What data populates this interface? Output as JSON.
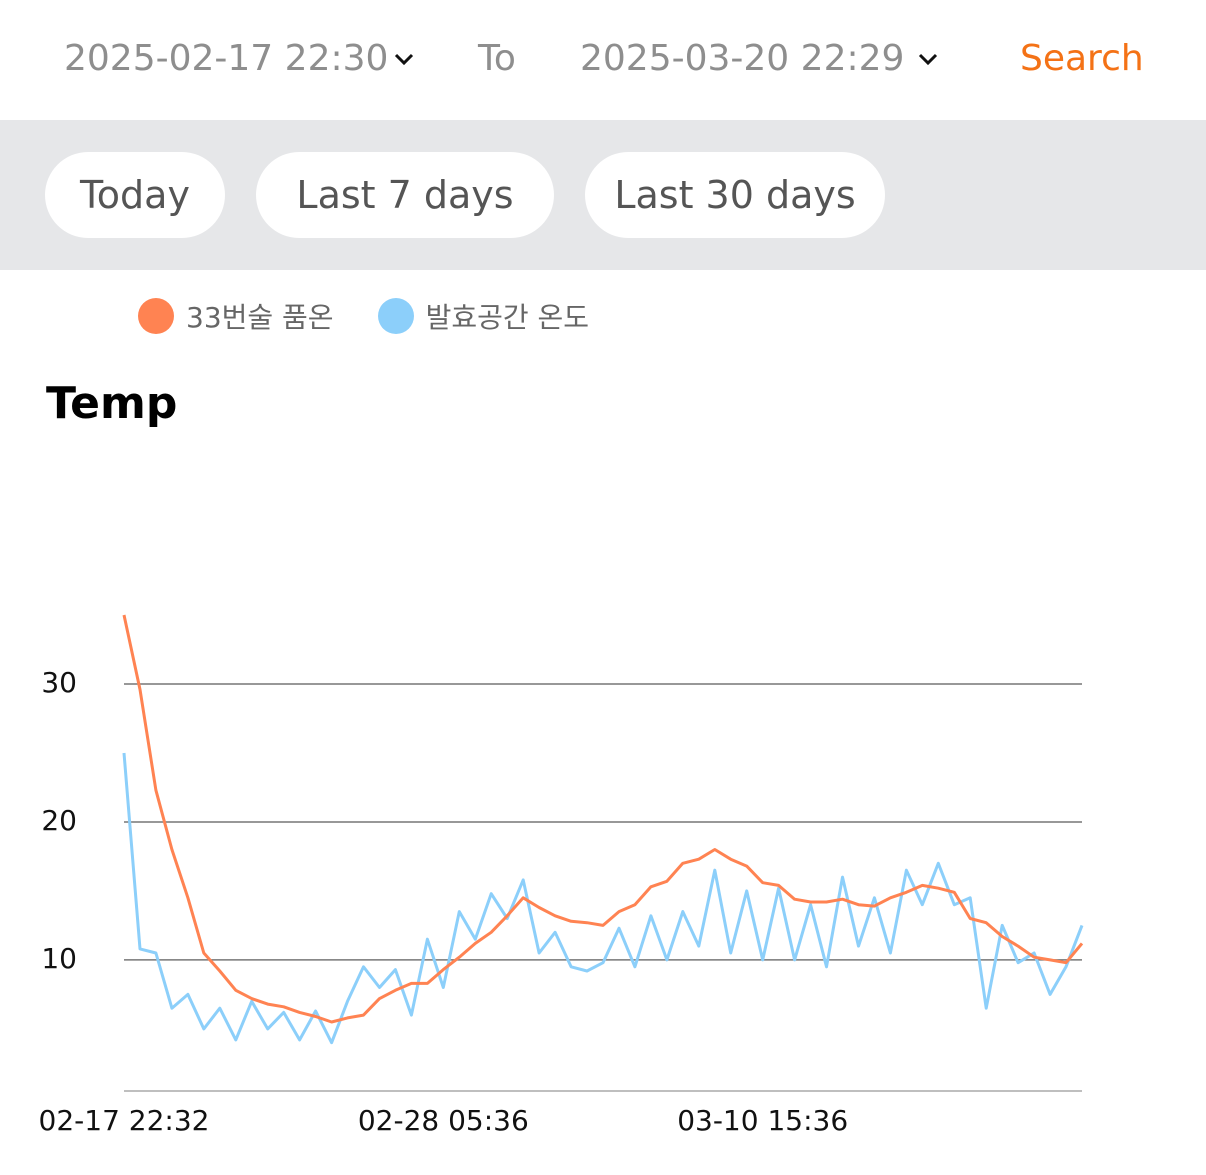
{
  "header": {
    "start": "2025-02-17 22:30",
    "separator": "To",
    "end": "2025-03-20 22:29",
    "search": "Search"
  },
  "presets": [
    "Today",
    "Last 7 days",
    "Last 30 days"
  ],
  "chart_data": {
    "type": "line",
    "title": "Temp",
    "categories": [
      "02-17 22:32",
      null,
      null,
      null,
      null,
      null,
      null,
      null,
      null,
      null,
      null,
      null,
      null,
      null,
      null,
      null,
      null,
      null,
      null,
      null,
      "02-28 05:36",
      null,
      null,
      null,
      null,
      null,
      null,
      null,
      null,
      null,
      null,
      null,
      null,
      null,
      null,
      null,
      null,
      null,
      null,
      null,
      "03-10 15:36",
      null,
      null,
      null,
      null,
      null,
      null,
      null,
      null,
      null,
      null,
      null,
      null,
      null,
      null,
      null,
      null,
      null,
      null,
      null,
      null
    ],
    "series": [
      {
        "name": "33번술 품온",
        "color": "#ff8352",
        "values": [
          35,
          29.6,
          22.3,
          18,
          14.5,
          10.5,
          9.2,
          7.8,
          7.2,
          6.8,
          6.6,
          6.2,
          5.9,
          5.5,
          5.8,
          6.0,
          7.2,
          7.8,
          8.3,
          8.3,
          9.3,
          10.2,
          11.2,
          12.0,
          13.2,
          14.5,
          13.8,
          13.2,
          12.8,
          12.7,
          12.5,
          13.5,
          14.0,
          15.3,
          15.7,
          17.0,
          17.3,
          18.0,
          17.3,
          16.8,
          15.6,
          15.4,
          14.4,
          14.2,
          14.2,
          14.4,
          14.0,
          13.9,
          14.5,
          14.9,
          15.4,
          15.2,
          14.9,
          13.0,
          12.7,
          11.7,
          11.0,
          10.2,
          10.0,
          9.8,
          11.2
        ]
      },
      {
        "name": "발효공간 온도",
        "color": "#8ccffa",
        "values": [
          25,
          10.8,
          10.5,
          6.5,
          7.5,
          5.0,
          6.5,
          4.2,
          7.0,
          5.0,
          6.2,
          4.2,
          6.3,
          4.0,
          7.0,
          9.5,
          8.0,
          9.3,
          6.0,
          11.5,
          8.0,
          13.5,
          11.5,
          14.8,
          13.0,
          15.8,
          10.5,
          12.0,
          9.5,
          9.2,
          9.8,
          12.3,
          9.5,
          13.2,
          10.0,
          13.5,
          11.0,
          16.5,
          10.5,
          15.0,
          10.0,
          15.2,
          10.0,
          14.0,
          9.5,
          16.0,
          11.0,
          14.5,
          10.5,
          16.5,
          14.0,
          17.0,
          14.0,
          14.5,
          6.5,
          12.5,
          9.8,
          10.5,
          7.5,
          9.5,
          12.5
        ]
      }
    ],
    "ylim": [
      0.5,
      40
    ],
    "yticks": [
      10,
      20,
      30
    ],
    "grid": true
  }
}
